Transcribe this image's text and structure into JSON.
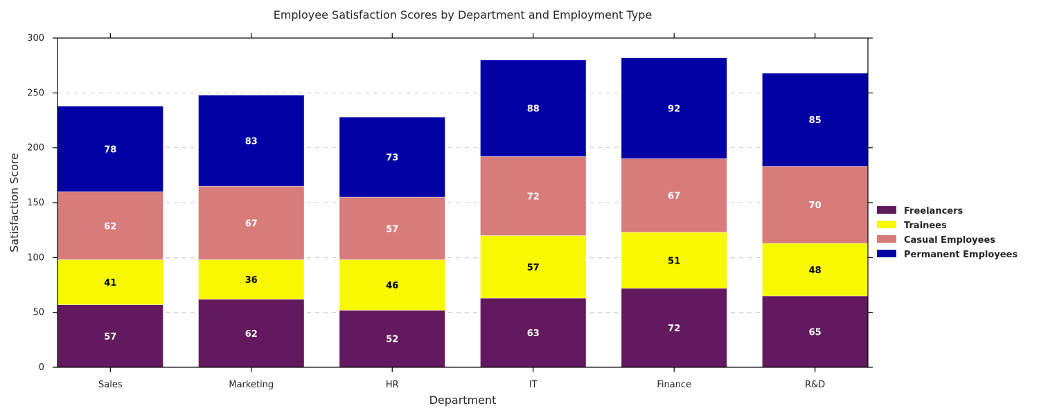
{
  "chart_data": {
    "type": "bar",
    "stacked": true,
    "title": "Employee Satisfaction Scores by Department and Employment Type",
    "xlabel": "Department",
    "ylabel": "Satisfaction Score",
    "ylim": [
      0,
      300
    ],
    "yticks": [
      0,
      50,
      100,
      150,
      200,
      250,
      300
    ],
    "grid": "horizontal dashed",
    "legend_position": "right",
    "categories": [
      "Sales",
      "Marketing",
      "HR",
      "IT",
      "Finance",
      "R&D"
    ],
    "series": [
      {
        "name": "Freelancers",
        "color": "#63195e",
        "label_color": "#ffffff",
        "values": [
          57,
          62,
          52,
          63,
          72,
          65
        ]
      },
      {
        "name": "Trainees",
        "color": "#f8f800",
        "label_color": "#000000",
        "values": [
          41,
          36,
          46,
          57,
          51,
          48
        ]
      },
      {
        "name": "Casual Employees",
        "color": "#d77c7a",
        "label_color": "#ffffff",
        "values": [
          62,
          67,
          57,
          72,
          67,
          70
        ]
      },
      {
        "name": "Permanent Employees",
        "color": "#0000a4",
        "label_color": "#ffffff",
        "values": [
          78,
          83,
          73,
          88,
          92,
          85
        ]
      }
    ]
  }
}
